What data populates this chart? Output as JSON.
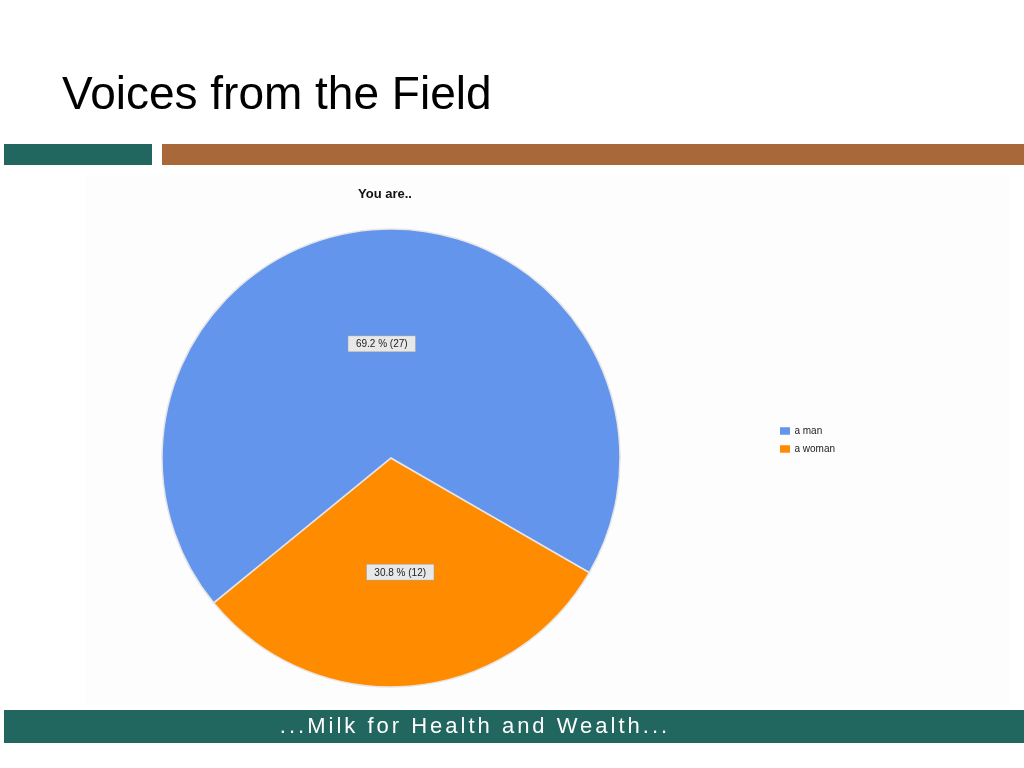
{
  "chart_data": {
    "type": "pie",
    "title": "Voices from the Field",
    "subtitle": "You are..",
    "categories": [
      "a woman",
      "a man"
    ],
    "values": [
      12,
      27
    ],
    "colors": [
      "#ff8c00",
      "#6495ed"
    ],
    "value_labels": [
      "30.8 % (12)",
      "69.2 % (27)"
    ],
    "legend": "right",
    "annotations": [
      "...Milk for Health and Wealth..."
    ]
  }
}
